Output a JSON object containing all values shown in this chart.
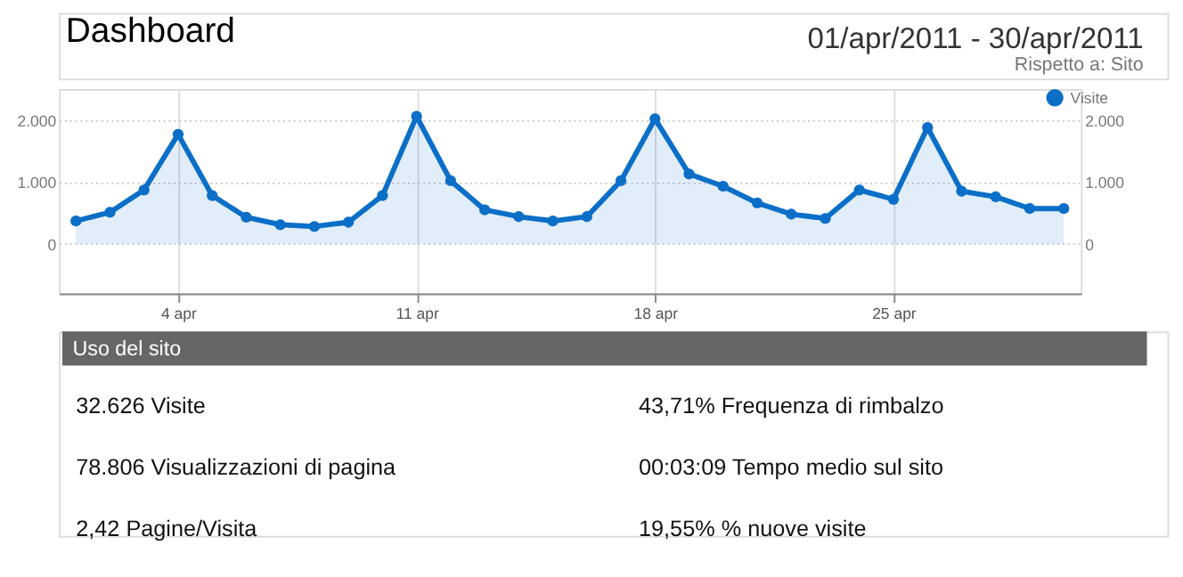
{
  "chart_data": {
    "type": "area",
    "title": "Dashboard",
    "subtitle": "01/apr/2011 - 30/apr/2011",
    "annotations": [
      "Rispetto a: Sito",
      "Uso del sito",
      "32.626 Visite",
      "78.806 Visualizzazioni di pagina",
      "2,42 Pagine/Visita",
      "43,71% Frequenza di rimbalzo",
      "00:03:09 Tempo medio sul sito",
      "19,55% % nuove visite"
    ],
    "x": [
      "2011-04-01",
      "2011-04-02",
      "2011-04-03",
      "2011-04-04",
      "2011-04-05",
      "2011-04-06",
      "2011-04-07",
      "2011-04-08",
      "2011-04-09",
      "2011-04-10",
      "2011-04-11",
      "2011-04-12",
      "2011-04-13",
      "2011-04-14",
      "2011-04-15",
      "2011-04-16",
      "2011-04-17",
      "2011-04-18",
      "2011-04-19",
      "2011-04-20",
      "2011-04-21",
      "2011-04-22",
      "2011-04-23",
      "2011-04-24",
      "2011-04-25",
      "2011-04-26",
      "2011-04-27",
      "2011-04-28",
      "2011-04-29",
      "2011-04-30"
    ],
    "series": [
      {
        "name": "Visite",
        "color": "#0b6fc8",
        "values": [
          370,
          510,
          870,
          1770,
          780,
          430,
          310,
          280,
          350,
          780,
          2060,
          1020,
          550,
          440,
          370,
          440,
          1020,
          2020,
          1130,
          930,
          660,
          480,
          410,
          870,
          720,
          1880,
          850,
          760,
          570,
          570
        ]
      }
    ],
    "xlim": [
      "2011-03-31T12:00",
      "2011-04-30T12:00"
    ],
    "xticks": [
      {
        "value": "2011-04-04",
        "label": "4 apr"
      },
      {
        "value": "2011-04-11",
        "label": "11 apr"
      },
      {
        "value": "2011-04-18",
        "label": "18 apr"
      },
      {
        "value": "2011-04-25",
        "label": "25 apr"
      }
    ],
    "ylim": [
      -800,
      2500
    ],
    "yticks": [
      {
        "value": 0,
        "label": "0"
      },
      {
        "value": 1000,
        "label": "1.000"
      },
      {
        "value": 2000,
        "label": "2.000"
      }
    ],
    "y2lim": [
      -800,
      2500
    ],
    "y2ticks": [
      {
        "value": 0,
        "label": "0"
      },
      {
        "value": 1000,
        "label": "1.000"
      },
      {
        "value": 2000,
        "label": "2.000"
      }
    ],
    "grid": true,
    "legend": "top right",
    "marker": "circle",
    "line_style": "solid"
  }
}
